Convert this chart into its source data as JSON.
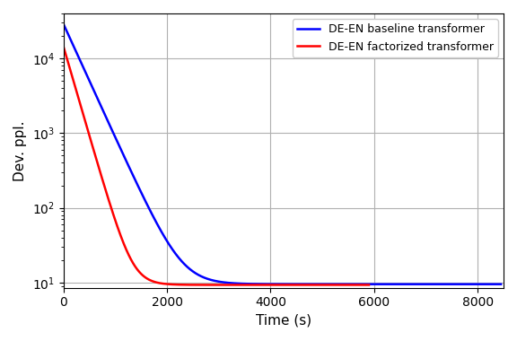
{
  "title": "",
  "xlabel": "Time (s)",
  "ylabel": "Dev. ppl.",
  "xlim": [
    0,
    8500
  ],
  "ylim_log": [
    8.5,
    40000
  ],
  "legend": [
    {
      "label": "DE-EN baseline transformer",
      "color": "#0000ff"
    },
    {
      "label": "DE-EN factorized transformer",
      "color": "#ff0000"
    }
  ],
  "blue_a": 29000,
  "blue_k": 0.0035,
  "blue_c": 9.5,
  "blue_x_end": 8450,
  "red_a": 14500,
  "red_k": 0.0055,
  "red_c": 9.3,
  "red_x_end": 5900,
  "grid_color": "#b0b0b0",
  "background_color": "#ffffff",
  "line_width": 1.8
}
